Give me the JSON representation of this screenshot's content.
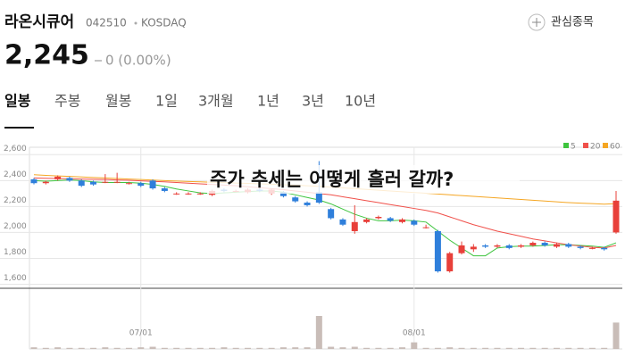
{
  "header": {
    "name": "라온시큐어",
    "code": "042510",
    "market": "KOSDAQ",
    "price": "2,245",
    "change": "0 (0.00%)",
    "watch_button": "관심종목"
  },
  "tabs": [
    "일봉",
    "주봉",
    "월봉",
    "1일",
    "3개월",
    "1년",
    "3년",
    "10년"
  ],
  "overlay_title": "주가 추세는 어떻게 흘러 갈까?",
  "chart_data": {
    "type": "candlestick",
    "categories": [
      null,
      null,
      null,
      null,
      null,
      null,
      null,
      null,
      null,
      "07/01",
      null,
      null,
      null,
      null,
      null,
      null,
      null,
      null,
      null,
      null,
      null,
      null,
      null,
      null,
      null,
      null,
      null,
      null,
      null,
      null,
      null,
      null,
      "08/01",
      null,
      null,
      null,
      null,
      null,
      null,
      null,
      null,
      null,
      null,
      null,
      null,
      null,
      null,
      null,
      null,
      null
    ],
    "open": [
      2410,
      2380,
      2410,
      2420,
      2400,
      2390,
      2390,
      2390,
      2380,
      2380,
      2400,
      2340,
      2300,
      2300,
      2300,
      2290,
      2330,
      2320,
      2310,
      2330,
      2300,
      2310,
      2270,
      2230,
      2310,
      2180,
      2100,
      2010,
      2080,
      2110,
      2110,
      2080,
      2090,
      2040,
      2010,
      1700,
      1840,
      1870,
      1900,
      1890,
      1900,
      1890,
      1900,
      1920,
      1890,
      1910,
      1890,
      1880,
      1880,
      2000
    ],
    "high": [
      2420,
      2400,
      2440,
      2430,
      2410,
      2400,
      2450,
      2460,
      2390,
      2390,
      2410,
      2350,
      2310,
      2310,
      2310,
      2330,
      2340,
      2330,
      2340,
      2340,
      2340,
      2320,
      2280,
      2240,
      2550,
      2190,
      2110,
      2210,
      2110,
      2130,
      2120,
      2110,
      2100,
      2060,
      2020,
      1850,
      1930,
      1910,
      1910,
      1910,
      1910,
      1910,
      1930,
      1930,
      1920,
      1920,
      1900,
      1890,
      1890,
      2320
    ],
    "low": [
      2370,
      2370,
      2400,
      2390,
      2350,
      2360,
      2380,
      2380,
      2370,
      2350,
      2330,
      2310,
      2290,
      2290,
      2290,
      2280,
      2310,
      2310,
      2300,
      2310,
      2290,
      2270,
      2230,
      2200,
      2220,
      2100,
      2050,
      1990,
      2070,
      2100,
      2080,
      2070,
      2050,
      2030,
      1690,
      1690,
      1830,
      1850,
      1880,
      1880,
      1870,
      1880,
      1890,
      1890,
      1880,
      1880,
      1870,
      1870,
      1860,
      1990
    ],
    "close": [
      2380,
      2390,
      2430,
      2400,
      2360,
      2370,
      2390,
      2390,
      2380,
      2360,
      2340,
      2320,
      2300,
      2300,
      2300,
      2320,
      2320,
      2320,
      2330,
      2320,
      2330,
      2280,
      2240,
      2210,
      2230,
      2110,
      2060,
      2080,
      2100,
      2120,
      2090,
      2100,
      2060,
      2040,
      1700,
      1840,
      1900,
      1890,
      1890,
      1900,
      1880,
      1900,
      1920,
      1900,
      1910,
      1890,
      1880,
      1880,
      1870,
      2245
    ],
    "volume": [
      3,
      2,
      3,
      2,
      2,
      2,
      3,
      2,
      2,
      3,
      4,
      2,
      2,
      2,
      2,
      2,
      3,
      2,
      2,
      2,
      2,
      3,
      3,
      3,
      60,
      4,
      3,
      4,
      2,
      2,
      2,
      3,
      12,
      2,
      2,
      3,
      2,
      2,
      2,
      2,
      2,
      2,
      2,
      2,
      2,
      2,
      2,
      2,
      2,
      48
    ],
    "up_color": "#e8403a",
    "down_color": "#2f7fdb",
    "series": [
      {
        "name": "5",
        "color": "#3ec43e",
        "values": [
          2400,
          2395,
          2400,
          2405,
          2400,
          2390,
          2385,
          2385,
          2385,
          2380,
          2370,
          2355,
          2335,
          2320,
          2305,
          2300,
          2305,
          2310,
          2315,
          2320,
          2320,
          2310,
          2290,
          2270,
          2250,
          2220,
          2180,
          2140,
          2110,
          2090,
          2090,
          2095,
          2090,
          2080,
          2010,
          1940,
          1880,
          1820,
          1820,
          1880,
          1890,
          1895,
          1895,
          1900,
          1905,
          1905,
          1900,
          1895,
          1885,
          1920
        ]
      },
      {
        "name": "20",
        "color": "#f0504a",
        "values": [
          2420,
          2418,
          2416,
          2414,
          2412,
          2410,
          2408,
          2405,
          2402,
          2398,
          2394,
          2390,
          2385,
          2380,
          2375,
          2370,
          2365,
          2360,
          2352,
          2345,
          2338,
          2330,
          2320,
          2310,
          2300,
          2290,
          2275,
          2260,
          2245,
          2230,
          2215,
          2200,
          2185,
          2170,
          2150,
          2120,
          2090,
          2060,
          2035,
          2010,
          1990,
          1970,
          1950,
          1935,
          1920,
          1905,
          1895,
          1885,
          1880,
          1900
        ]
      },
      {
        "name": "60",
        "color": "#f5a623",
        "values": [
          2445,
          2440,
          2436,
          2432,
          2428,
          2424,
          2420,
          2416,
          2412,
          2408,
          2404,
          2400,
          2396,
          2393,
          2390,
          2387,
          2384,
          2381,
          2378,
          2375,
          2372,
          2368,
          2364,
          2360,
          2356,
          2350,
          2344,
          2338,
          2332,
          2326,
          2320,
          2314,
          2308,
          2302,
          2296,
          2290,
          2284,
          2278,
          2272,
          2266,
          2260,
          2254,
          2248,
          2242,
          2236,
          2230,
          2226,
          2222,
          2218,
          2222
        ]
      }
    ],
    "ylim": [
      1590,
      2650
    ],
    "yticks": [
      {
        "value": 1600,
        "label": "1,600"
      },
      {
        "value": 1800,
        "label": "1,800"
      },
      {
        "value": 2000,
        "label": "2,000"
      },
      {
        "value": 2200,
        "label": "2,200"
      },
      {
        "value": 2400,
        "label": "2,400"
      },
      {
        "value": 2600,
        "label": "2,600"
      }
    ],
    "grid": true,
    "legend": "top-right"
  }
}
